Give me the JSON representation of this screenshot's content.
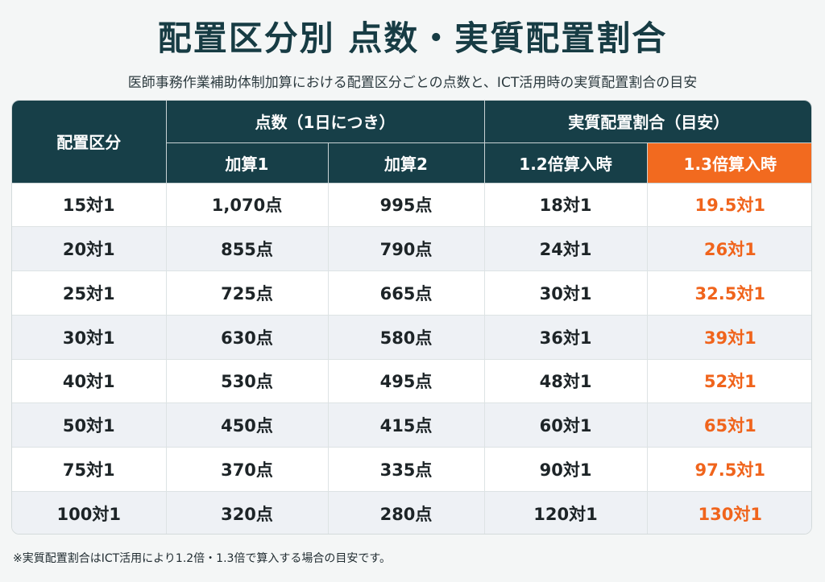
{
  "title": "配置区分別 点数・実質配置割合",
  "subtitle": "医師事務作業補助体制加算における配置区分ごとの点数と、ICT活用時の実質配置割合の目安",
  "table": {
    "header_placement": "配置区分",
    "header_points": "点数（1日につき）",
    "header_ratio": "実質配置割合（目安）",
    "sub_add1": "加算1",
    "sub_add2": "加算2",
    "sub_12x": "1.2倍算入時",
    "sub_13x": "1.3倍算入時",
    "accent_color": "#f26a1f",
    "header_color": "#173f48",
    "rows": [
      [
        "15対1",
        "1,070点",
        "995点",
        "18対1",
        "19.5対1"
      ],
      [
        "20対1",
        "855点",
        "790点",
        "24対1",
        "26対1"
      ],
      [
        "25対1",
        "725点",
        "665点",
        "30対1",
        "32.5対1"
      ],
      [
        "30対1",
        "630点",
        "580点",
        "36対1",
        "39対1"
      ],
      [
        "40対1",
        "530点",
        "495点",
        "48対1",
        "52対1"
      ],
      [
        "50対1",
        "450点",
        "415点",
        "60対1",
        "65対1"
      ],
      [
        "75対1",
        "370点",
        "335点",
        "90対1",
        "97.5対1"
      ],
      [
        "100対1",
        "320点",
        "280点",
        "120対1",
        "130対1"
      ]
    ]
  },
  "note": "※実質配置割合はICT活用により1.2倍・1.3倍で算入する場合の目安です。"
}
